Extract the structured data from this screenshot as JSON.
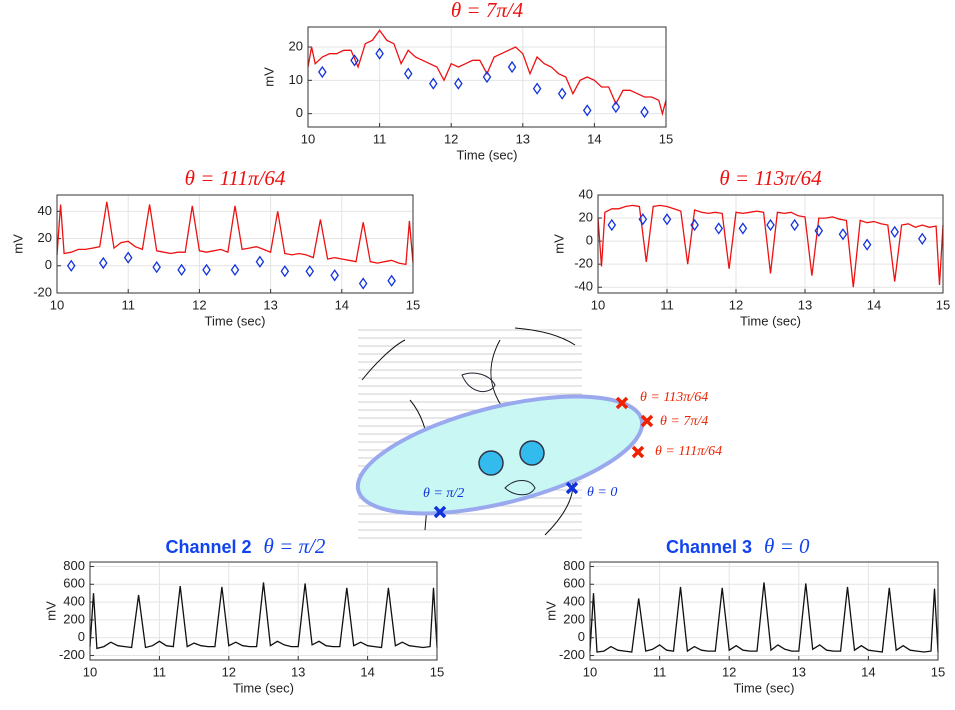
{
  "chart_data": [
    {
      "type": "line",
      "title": "θ = 7π/4",
      "title_color": "#ee1111",
      "ylabel": "mV",
      "xlabel": "Time (sec)",
      "grid": true,
      "xlim": [
        10,
        15
      ],
      "xticks": [
        10,
        11,
        12,
        13,
        14,
        15
      ],
      "ylim": [
        -4,
        26
      ],
      "yticks": [
        0,
        10,
        20
      ],
      "x": [
        10,
        10.05,
        10.1,
        10.2,
        10.3,
        10.4,
        10.5,
        10.6,
        10.7,
        10.8,
        10.9,
        11.0,
        11.1,
        11.2,
        11.3,
        11.4,
        11.5,
        11.6,
        11.7,
        11.8,
        11.9,
        12.0,
        12.1,
        12.2,
        12.3,
        12.4,
        12.5,
        12.6,
        12.7,
        12.8,
        12.9,
        13.0,
        13.1,
        13.2,
        13.3,
        13.4,
        13.5,
        13.6,
        13.7,
        13.8,
        13.9,
        14.0,
        14.1,
        14.2,
        14.3,
        14.4,
        14.5,
        14.6,
        14.7,
        14.8,
        14.9,
        14.95,
        15.0
      ],
      "series": [
        {
          "style": "line",
          "color": "#ee1111",
          "values": [
            14,
            20,
            15,
            17,
            18,
            18,
            19,
            19,
            14,
            21,
            22,
            25,
            22,
            21,
            15,
            19,
            17,
            16,
            15,
            14,
            10,
            15,
            14,
            15,
            16,
            16,
            12,
            17,
            18,
            19,
            20,
            18,
            12,
            17,
            15,
            14,
            12,
            11,
            6,
            10,
            11,
            10,
            8,
            8,
            3,
            7,
            7,
            6,
            5,
            5,
            4,
            0,
            4
          ]
        },
        {
          "style": "diamond",
          "color": "#1133dd",
          "x": [
            10.2,
            10.65,
            11.0,
            11.4,
            11.75,
            12.1,
            12.5,
            12.85,
            13.2,
            13.55,
            13.9,
            14.3,
            14.7
          ],
          "values": [
            12.5,
            16,
            18,
            12,
            9,
            9,
            11,
            14,
            7.5,
            6,
            1,
            2,
            0.5
          ]
        }
      ]
    },
    {
      "type": "line",
      "title": "θ = 111π/64",
      "title_color": "#ee1111",
      "ylabel": "mV",
      "xlabel": "Time (sec)",
      "grid": true,
      "xlim": [
        10,
        15
      ],
      "xticks": [
        10,
        11,
        12,
        13,
        14,
        15
      ],
      "ylim": [
        -20,
        52
      ],
      "yticks": [
        -20,
        0,
        20,
        40
      ],
      "x": [
        10,
        10.05,
        10.1,
        10.2,
        10.3,
        10.4,
        10.5,
        10.6,
        10.7,
        10.8,
        10.9,
        11.0,
        11.1,
        11.2,
        11.3,
        11.4,
        11.5,
        11.6,
        11.7,
        11.8,
        11.9,
        12.0,
        12.1,
        12.2,
        12.3,
        12.4,
        12.5,
        12.6,
        12.7,
        12.8,
        12.9,
        13.0,
        13.1,
        13.2,
        13.3,
        13.4,
        13.5,
        13.6,
        13.7,
        13.8,
        13.9,
        14.0,
        14.1,
        14.2,
        14.3,
        14.4,
        14.5,
        14.6,
        14.7,
        14.8,
        14.9,
        14.95,
        15.0
      ],
      "series": [
        {
          "style": "line",
          "color": "#ee1111",
          "values": [
            8,
            45,
            9,
            10,
            12,
            12,
            13,
            14,
            47,
            13,
            17,
            18,
            14,
            12,
            45,
            11,
            10,
            9,
            10,
            10,
            44,
            11,
            10,
            11,
            12,
            10,
            44,
            12,
            13,
            14,
            12,
            10,
            40,
            9,
            8,
            9,
            8,
            6,
            34,
            5,
            6,
            5,
            4,
            3,
            32,
            3,
            2,
            3,
            4,
            2,
            1,
            33,
            2
          ]
        },
        {
          "style": "diamond",
          "color": "#1133dd",
          "x": [
            10.2,
            10.65,
            11.0,
            11.4,
            11.75,
            12.1,
            12.5,
            12.85,
            13.2,
            13.55,
            13.9,
            14.3,
            14.7
          ],
          "values": [
            0,
            2,
            6,
            -1,
            -3,
            -3,
            -3,
            3,
            -4,
            -4,
            -7,
            -13,
            -11
          ]
        }
      ]
    },
    {
      "type": "line",
      "title": "θ = 113π/64",
      "title_color": "#ee1111",
      "ylabel": "mV",
      "xlabel": "Time (sec)",
      "grid": true,
      "xlim": [
        10,
        15
      ],
      "xticks": [
        10,
        11,
        12,
        13,
        14,
        15
      ],
      "ylim": [
        -45,
        40
      ],
      "yticks": [
        -40,
        -20,
        0,
        20,
        40
      ],
      "x": [
        10,
        10.05,
        10.1,
        10.2,
        10.3,
        10.4,
        10.5,
        10.6,
        10.7,
        10.8,
        10.9,
        11.0,
        11.1,
        11.2,
        11.3,
        11.4,
        11.5,
        11.6,
        11.7,
        11.8,
        11.9,
        12.0,
        12.1,
        12.2,
        12.3,
        12.4,
        12.5,
        12.6,
        12.7,
        12.8,
        12.9,
        13.0,
        13.1,
        13.2,
        13.3,
        13.4,
        13.5,
        13.6,
        13.7,
        13.8,
        13.9,
        14.0,
        14.1,
        14.2,
        14.3,
        14.4,
        14.5,
        14.6,
        14.7,
        14.8,
        14.9,
        14.95,
        15.0
      ],
      "series": [
        {
          "style": "line",
          "color": "#ee1111",
          "values": [
            20,
            -22,
            25,
            28,
            28,
            30,
            31,
            30,
            -18,
            30,
            31,
            30,
            28,
            26,
            -20,
            27,
            25,
            24,
            25,
            24,
            -24,
            25,
            24,
            25,
            26,
            25,
            -28,
            25,
            24,
            25,
            22,
            21,
            -30,
            20,
            20,
            21,
            19,
            18,
            -40,
            18,
            16,
            17,
            15,
            14,
            -35,
            14,
            15,
            12,
            14,
            12,
            13,
            -38,
            14
          ]
        },
        {
          "style": "diamond",
          "color": "#1133dd",
          "x": [
            10.2,
            10.65,
            11.0,
            11.4,
            11.75,
            12.1,
            12.5,
            12.85,
            13.2,
            13.55,
            13.9,
            14.3,
            14.7
          ],
          "values": [
            14,
            19,
            19,
            14,
            11,
            11,
            14,
            14,
            9,
            6,
            -3,
            8,
            2
          ]
        }
      ]
    },
    {
      "type": "line",
      "title": "Channel 2",
      "subtitle": "θ = π/2",
      "title_color": "#1144ee",
      "ylabel": "mV",
      "xlabel": "Time (sec)",
      "grid": true,
      "xlim": [
        10,
        15
      ],
      "xticks": [
        10,
        11,
        12,
        13,
        14,
        15
      ],
      "ylim": [
        -250,
        850
      ],
      "yticks": [
        -200,
        0,
        200,
        400,
        600,
        800
      ],
      "x": [
        10,
        10.05,
        10.1,
        10.2,
        10.3,
        10.4,
        10.5,
        10.6,
        10.7,
        10.8,
        10.9,
        11.0,
        11.1,
        11.2,
        11.3,
        11.4,
        11.5,
        11.6,
        11.7,
        11.8,
        11.9,
        12.0,
        12.1,
        12.2,
        12.3,
        12.4,
        12.5,
        12.6,
        12.7,
        12.8,
        12.9,
        13.0,
        13.1,
        13.2,
        13.3,
        13.4,
        13.5,
        13.6,
        13.7,
        13.8,
        13.9,
        14.0,
        14.1,
        14.2,
        14.3,
        14.4,
        14.5,
        14.6,
        14.7,
        14.8,
        14.9,
        14.95,
        15.0
      ],
      "series": [
        {
          "style": "line",
          "color": "#111111",
          "values": [
            -100,
            500,
            -120,
            -100,
            -50,
            -90,
            -100,
            -110,
            480,
            -110,
            -90,
            -40,
            -90,
            -100,
            580,
            -100,
            -60,
            -90,
            -100,
            -100,
            570,
            -90,
            -50,
            -90,
            -100,
            -100,
            620,
            -90,
            -40,
            -80,
            -100,
            -100,
            610,
            -80,
            -40,
            -90,
            -100,
            -100,
            560,
            -90,
            -50,
            -90,
            -100,
            -110,
            560,
            -90,
            -50,
            -90,
            -100,
            -110,
            -100,
            560,
            -110
          ]
        }
      ]
    },
    {
      "type": "line",
      "title": "Channel 3",
      "subtitle": "θ = 0",
      "title_color": "#1144ee",
      "ylabel": "mV",
      "xlabel": "Time (sec)",
      "grid": true,
      "xlim": [
        10,
        15
      ],
      "xticks": [
        10,
        11,
        12,
        13,
        14,
        15
      ],
      "ylim": [
        -250,
        850
      ],
      "yticks": [
        -200,
        0,
        200,
        400,
        600,
        800
      ],
      "x": [
        10,
        10.05,
        10.1,
        10.2,
        10.3,
        10.4,
        10.5,
        10.6,
        10.7,
        10.8,
        10.9,
        11.0,
        11.1,
        11.2,
        11.3,
        11.4,
        11.5,
        11.6,
        11.7,
        11.8,
        11.9,
        12.0,
        12.1,
        12.2,
        12.3,
        12.4,
        12.5,
        12.6,
        12.7,
        12.8,
        12.9,
        13.0,
        13.1,
        13.2,
        13.3,
        13.4,
        13.5,
        13.6,
        13.7,
        13.8,
        13.9,
        14.0,
        14.1,
        14.2,
        14.3,
        14.4,
        14.5,
        14.6,
        14.7,
        14.8,
        14.9,
        14.95,
        15.0
      ],
      "series": [
        {
          "style": "line",
          "color": "#111111",
          "values": [
            -150,
            500,
            -160,
            -150,
            -100,
            -140,
            -150,
            -160,
            440,
            -150,
            -130,
            -80,
            -140,
            -150,
            570,
            -150,
            -100,
            -140,
            -150,
            -150,
            560,
            -140,
            -90,
            -140,
            -150,
            -150,
            620,
            -140,
            -80,
            -130,
            -150,
            -150,
            610,
            -130,
            -80,
            -140,
            -150,
            -150,
            570,
            -140,
            -90,
            -140,
            -150,
            -160,
            560,
            -140,
            -90,
            -140,
            -150,
            -160,
            -150,
            550,
            -160
          ]
        }
      ]
    }
  ],
  "diagram": {
    "labels": [
      {
        "text": "θ = 113π/64",
        "color": "#ee2200"
      },
      {
        "text": "θ = 7π/4",
        "color": "#ee2200"
      },
      {
        "text": "θ = 111π/64",
        "color": "#ee2200"
      },
      {
        "text": "θ = 0",
        "color": "#1133dd"
      },
      {
        "text": "θ = π/2",
        "color": "#1133dd"
      }
    ]
  }
}
